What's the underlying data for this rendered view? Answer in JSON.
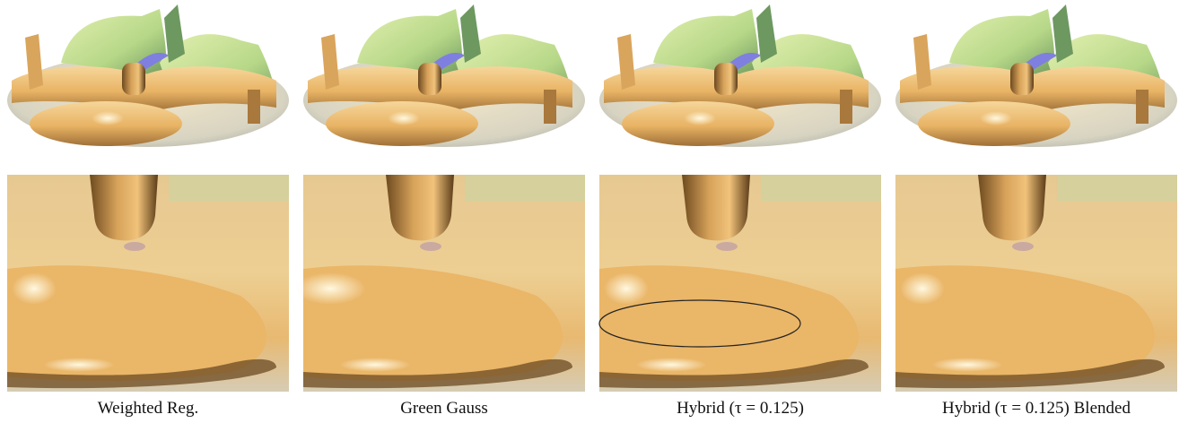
{
  "figure": {
    "panels": [
      {
        "caption": "Weighted Reg."
      },
      {
        "caption": "Green Gauss"
      },
      {
        "caption": "Hybrid (τ = 0.125)"
      },
      {
        "caption": "Hybrid (τ = 0.125) Blended"
      }
    ]
  }
}
